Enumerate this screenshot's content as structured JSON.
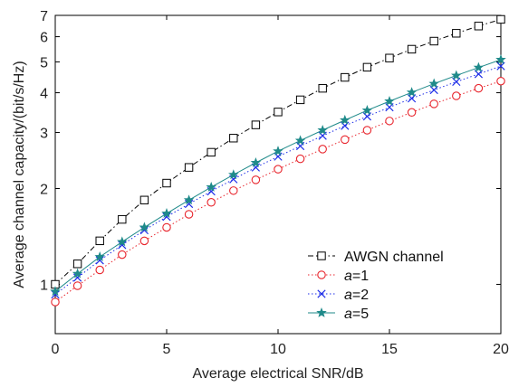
{
  "chart_data": {
    "type": "line",
    "title": "",
    "xlabel": "Average electrical SNR/dB",
    "ylabel": "Average channel capacity/(bit/s/Hz)",
    "xlim": [
      0,
      20
    ],
    "ylim": [
      0.7,
      7
    ],
    "yscale": "log",
    "grid": false,
    "legend_position": "bottom-right",
    "x_ticks": [
      0,
      5,
      10,
      15,
      20
    ],
    "y_ticks": [
      1,
      2,
      3,
      4,
      5,
      6,
      7
    ],
    "x_tick_labels": [
      "0",
      "5",
      "10",
      "15",
      "20"
    ],
    "y_tick_labels": [
      "1",
      "2",
      "3",
      "4",
      "5",
      "6",
      "7"
    ],
    "x": [
      0,
      1,
      2,
      3,
      4,
      5,
      6,
      7,
      8,
      9,
      10,
      11,
      12,
      13,
      14,
      15,
      16,
      17,
      18,
      19,
      20
    ],
    "series": [
      {
        "name": "AWGN channel",
        "name_parts": [
          {
            "text": "AWGN channel",
            "italic": false
          }
        ],
        "color": "#000000",
        "marker": "square",
        "dash": "6,3,1.5,3",
        "values": [
          1.0,
          1.16,
          1.37,
          1.6,
          1.84,
          2.08,
          2.33,
          2.6,
          2.88,
          3.17,
          3.48,
          3.8,
          4.13,
          4.47,
          4.81,
          5.14,
          5.48,
          5.81,
          6.15,
          6.48,
          6.8
        ]
      },
      {
        "name": "a=1",
        "name_parts": [
          {
            "text": "a",
            "italic": true
          },
          {
            "text": "=1",
            "italic": false
          }
        ],
        "color": "#e8242c",
        "marker": "circle",
        "dash": "1.5,2.5",
        "values": [
          0.88,
          0.99,
          1.11,
          1.24,
          1.37,
          1.51,
          1.66,
          1.81,
          1.97,
          2.13,
          2.3,
          2.48,
          2.66,
          2.85,
          3.05,
          3.26,
          3.47,
          3.69,
          3.91,
          4.13,
          4.35
        ]
      },
      {
        "name": "a=2",
        "name_parts": [
          {
            "text": "a",
            "italic": true
          },
          {
            "text": "=2",
            "italic": false
          }
        ],
        "color": "#1e2ee8",
        "marker": "x",
        "dash": "1.5,2.5",
        "values": [
          0.93,
          1.05,
          1.19,
          1.33,
          1.48,
          1.63,
          1.79,
          1.96,
          2.14,
          2.33,
          2.52,
          2.72,
          2.93,
          3.15,
          3.37,
          3.6,
          3.84,
          4.08,
          4.33,
          4.58,
          4.85
        ]
      },
      {
        "name": "a=5",
        "name_parts": [
          {
            "text": "a",
            "italic": true
          },
          {
            "text": "=5",
            "italic": false
          }
        ],
        "color": "#1f8a8a",
        "marker": "star",
        "dash": "",
        "values": [
          0.95,
          1.08,
          1.22,
          1.36,
          1.51,
          1.67,
          1.84,
          2.02,
          2.21,
          2.41,
          2.62,
          2.83,
          3.05,
          3.28,
          3.52,
          3.76,
          4.01,
          4.27,
          4.53,
          4.8,
          5.08
        ]
      }
    ]
  }
}
